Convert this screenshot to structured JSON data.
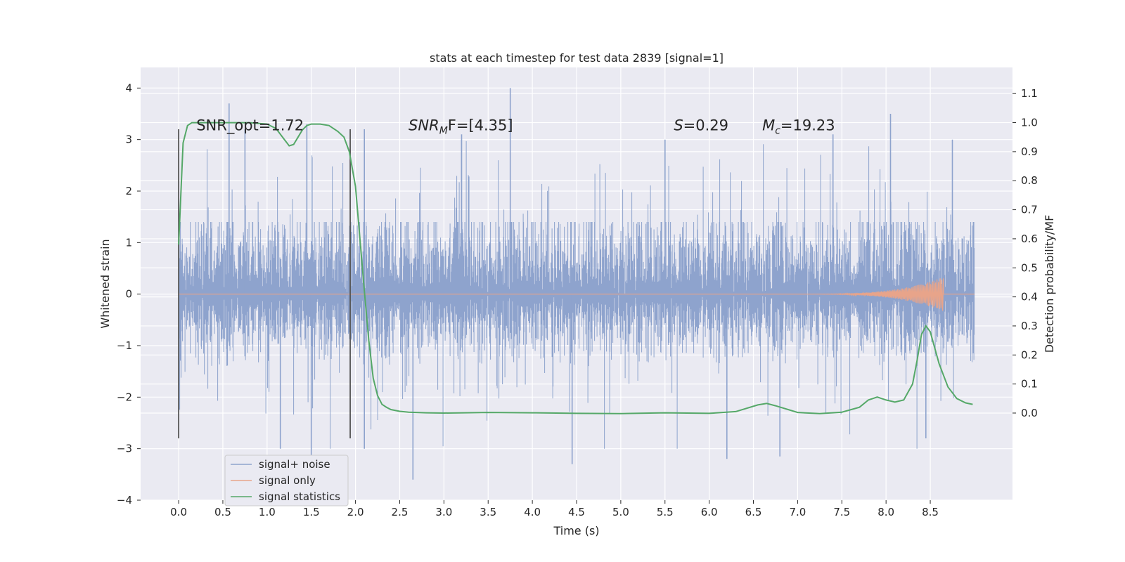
{
  "chart_data": {
    "type": "line",
    "title": "stats at each timestep for test data 2839 [signal=1]",
    "xlabel": "Time (s)",
    "ylabel": "Whitened strain",
    "y2label": "Detection probability/MF",
    "xlim": [
      -0.43,
      9.43
    ],
    "ylim": [
      -4.0,
      4.4
    ],
    "y2lim": [
      -0.3,
      1.19
    ],
    "xticks": [
      0.0,
      0.5,
      1.0,
      1.5,
      2.0,
      2.5,
      3.0,
      3.5,
      4.0,
      4.5,
      5.0,
      5.5,
      6.0,
      6.5,
      7.0,
      7.5,
      8.0,
      8.5
    ],
    "xticklabels": [
      "0.0",
      "0.5",
      "1.0",
      "1.5",
      "2.0",
      "2.5",
      "3.0",
      "3.5",
      "4.0",
      "4.5",
      "5.0",
      "5.5",
      "6.0",
      "6.5",
      "7.0",
      "7.5",
      "8.0",
      "8.5"
    ],
    "yticks": [
      4,
      3,
      2,
      1,
      0,
      -1,
      -2,
      -3,
      -4
    ],
    "yticklabels": [
      "4",
      "3",
      "2",
      "1",
      "0",
      "−1",
      "−2",
      "−3",
      "−4"
    ],
    "y2ticks": [
      1.1,
      1.0,
      0.9,
      0.8,
      0.7,
      0.6,
      0.5,
      0.4,
      0.3,
      0.2,
      0.1,
      0.0
    ],
    "y2ticklabels": [
      "1.1",
      "1.0",
      "0.9",
      "0.8",
      "0.7",
      "0.6",
      "0.5",
      "0.4",
      "0.3",
      "0.2",
      "0.1",
      "0.0"
    ],
    "grid": true,
    "legend_position": "lower-left",
    "series": [
      {
        "name": "signal+ noise",
        "color": "#8ea3cd",
        "axis": "left",
        "x_range": [
          0.0,
          9.0
        ],
        "typical_envelope": [
          -1.4,
          1.4
        ],
        "peaks": [
          {
            "x": 0.57,
            "y": 3.7
          },
          {
            "x": 0.75,
            "y": 3.2
          },
          {
            "x": 1.45,
            "y": 3.3
          },
          {
            "x": 2.1,
            "y": 3.2
          },
          {
            "x": 3.2,
            "y": 3.1
          },
          {
            "x": 3.75,
            "y": 4.0
          },
          {
            "x": 5.5,
            "y": 3.0
          },
          {
            "x": 7.4,
            "y": 3.1
          },
          {
            "x": 8.05,
            "y": 3.5
          },
          {
            "x": 8.75,
            "y": 3.0
          },
          {
            "x": 1.5,
            "y": -3.3
          },
          {
            "x": 2.65,
            "y": -3.6
          },
          {
            "x": 4.45,
            "y": -3.3
          },
          {
            "x": 6.2,
            "y": -3.2
          },
          {
            "x": 6.8,
            "y": -3.15
          },
          {
            "x": 1.15,
            "y": -3.0
          },
          {
            "x": 2.1,
            "y": -3.0
          },
          {
            "x": 8.45,
            "y": -2.8
          }
        ]
      },
      {
        "name": "signal only",
        "color": "#e8a48a",
        "axis": "left",
        "x_range": [
          0.0,
          9.0
        ],
        "chirp": {
          "start": 7.0,
          "peak_time": 8.65,
          "peak_amplitude": 0.33
        }
      },
      {
        "name": "signal statistics",
        "color": "#55a868",
        "axis": "right",
        "x": [
          0.0,
          0.05,
          0.1,
          0.15,
          0.2,
          0.3,
          0.4,
          0.5,
          0.6,
          0.8,
          1.0,
          1.1,
          1.2,
          1.25,
          1.3,
          1.35,
          1.4,
          1.45,
          1.5,
          1.6,
          1.7,
          1.8,
          1.87,
          1.93,
          2.0,
          2.05,
          2.1,
          2.15,
          2.2,
          2.25,
          2.3,
          2.35,
          2.4,
          2.5,
          2.6,
          2.8,
          3.0,
          3.5,
          4.0,
          4.5,
          5.0,
          5.5,
          6.0,
          6.3,
          6.55,
          6.65,
          6.75,
          7.0,
          7.25,
          7.5,
          7.7,
          7.8,
          7.9,
          8.0,
          8.1,
          8.2,
          8.3,
          8.35,
          8.4,
          8.45,
          8.5,
          8.6,
          8.7,
          8.8,
          8.9,
          8.98
        ],
        "values": [
          0.58,
          0.93,
          0.99,
          1.0,
          1.0,
          1.0,
          1.0,
          1.0,
          1.0,
          1.0,
          0.995,
          0.98,
          0.94,
          0.92,
          0.925,
          0.95,
          0.975,
          0.99,
          0.995,
          0.995,
          0.99,
          0.97,
          0.95,
          0.9,
          0.78,
          0.6,
          0.42,
          0.25,
          0.12,
          0.06,
          0.03,
          0.02,
          0.012,
          0.006,
          0.003,
          0.001,
          0.0,
          0.002,
          0.001,
          -0.001,
          -0.002,
          0.001,
          -0.001,
          0.005,
          0.028,
          0.033,
          0.025,
          0.002,
          -0.002,
          0.003,
          0.02,
          0.045,
          0.055,
          0.045,
          0.038,
          0.045,
          0.1,
          0.18,
          0.27,
          0.3,
          0.28,
          0.17,
          0.09,
          0.05,
          0.035,
          0.03
        ]
      }
    ],
    "vertical_markers": [
      {
        "x": 0.0,
        "y_range": [
          -2.8,
          3.2
        ]
      },
      {
        "x": 1.94,
        "y_range": [
          -2.8,
          3.2
        ]
      }
    ],
    "annotations": [
      {
        "text": "SNR_opt=1.72",
        "x": 0.2,
        "y": 3.18
      },
      {
        "main": "SNR",
        "sub": "M",
        "tail": "F=[4.35]",
        "x": 2.6,
        "y": 3.18
      },
      {
        "main": "S",
        "tail": "=0.29",
        "x": 5.6,
        "y": 3.18
      },
      {
        "main": "M",
        "sub": "c",
        "tail": "=19.23",
        "x": 6.6,
        "y": 3.18
      }
    ]
  },
  "colors": {
    "plot_background": "#eaeaf2",
    "grid": "#ffffff",
    "marker": "#555555",
    "text": "#262626"
  }
}
